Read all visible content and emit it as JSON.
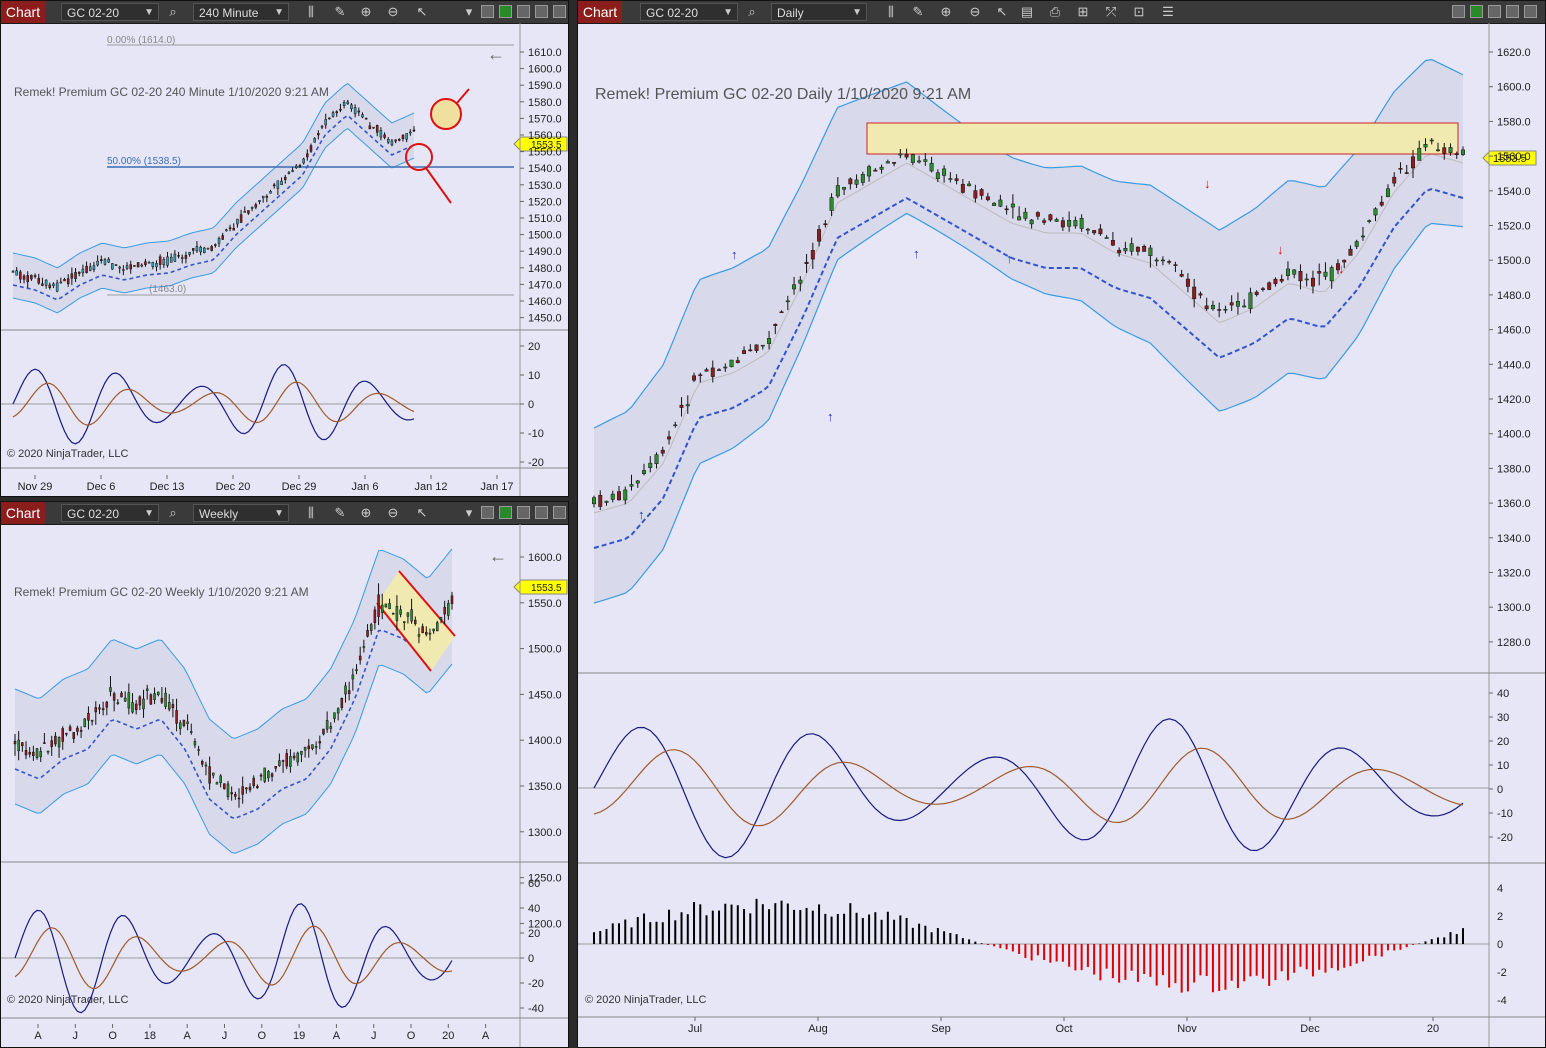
{
  "toolbar": {
    "tab_label": "Chart",
    "instrument": "GC 02-20",
    "icons": [
      "search-icon",
      "bar-type-icon",
      "pencil-icon",
      "zoom-in-icon",
      "zoom-out-icon",
      "pointer-icon",
      "chevron-down-icon"
    ]
  },
  "colors": {
    "background": "#e6e6f6",
    "toolbar": "#3a3a3a",
    "tab": "#8c1d1d",
    "band": "#3a9be0",
    "up_arrow": "#1133cc",
    "down_arrow": "#dd1111",
    "price_marker": "#ffff00",
    "oscillator_fast": "#1a1a80",
    "oscillator_slow": "#a05a2c",
    "histogram_pos": "#000000",
    "histogram_neg": "#dd0000",
    "zone": "#f0eab0"
  },
  "charts": {
    "c240": {
      "interval": "240 Minute",
      "overlay": "Remek!  Premium  GC 02-20  240 Minute  1/10/2020 9:21 AM",
      "copyright": "© 2020 NinjaTrader, LLC",
      "current_price": "1553.5",
      "fib_top": "0.00% (1614.0)",
      "fib_mid": "50.00% (1538.5)",
      "fib_low": "(1463.0)",
      "price_ticks": [
        "1610.0",
        "1600.0",
        "1590.0",
        "1580.0",
        "1570.0",
        "1560.0",
        "1550.0",
        "1540.0",
        "1530.0",
        "1520.0",
        "1510.0",
        "1500.0",
        "1490.0",
        "1480.0",
        "1470.0",
        "1460.0",
        "1450.0"
      ],
      "osc_ticks": [
        "20",
        "10",
        "0",
        "-10",
        "-20"
      ],
      "x_ticks": [
        "Nov 29",
        "Dec 6",
        "Dec 13",
        "Dec 20",
        "Dec 29",
        "Jan 6",
        "Jan 12",
        "Jan 17"
      ]
    },
    "weekly": {
      "interval": "Weekly",
      "overlay": "Remek!  Premium  GC 02-20  Weekly  1/10/2020 9:21 AM",
      "copyright": "© 2020 NinjaTrader, LLC",
      "current_price": "1553.5",
      "price_ticks": [
        "1600.0",
        "1550.0",
        "1500.0",
        "1450.0",
        "1400.0",
        "1350.0",
        "1300.0",
        "1250.0",
        "1200.0"
      ],
      "osc_ticks": [
        "60",
        "40",
        "20",
        "0",
        "-20",
        "-40"
      ],
      "x_ticks": [
        "A",
        "J",
        "O",
        "18",
        "A",
        "J",
        "O",
        "19",
        "A",
        "J",
        "O",
        "20",
        "A"
      ]
    },
    "daily": {
      "interval": "Daily",
      "overlay": "Remek!  Premium  GC 02-20  Daily  1/10/2020 9:21 AM",
      "copyright": "© 2020 NinjaTrader, LLC",
      "current_price": "1553.5",
      "price_ticks": [
        "1620.0",
        "1600.0",
        "1580.0",
        "1560.0",
        "1540.0",
        "1520.0",
        "1500.0",
        "1480.0",
        "1460.0",
        "1440.0",
        "1420.0",
        "1400.0",
        "1380.0",
        "1360.0",
        "1340.0",
        "1320.0",
        "1300.0",
        "1280.0"
      ],
      "osc_ticks": [
        "40",
        "30",
        "20",
        "10",
        "0",
        "-10",
        "-20"
      ],
      "hist_ticks": [
        "4",
        "2",
        "0",
        "-2",
        "-4"
      ],
      "x_ticks": [
        "Jul",
        "Aug",
        "Sep",
        "Oct",
        "Nov",
        "Dec",
        "20"
      ]
    }
  }
}
